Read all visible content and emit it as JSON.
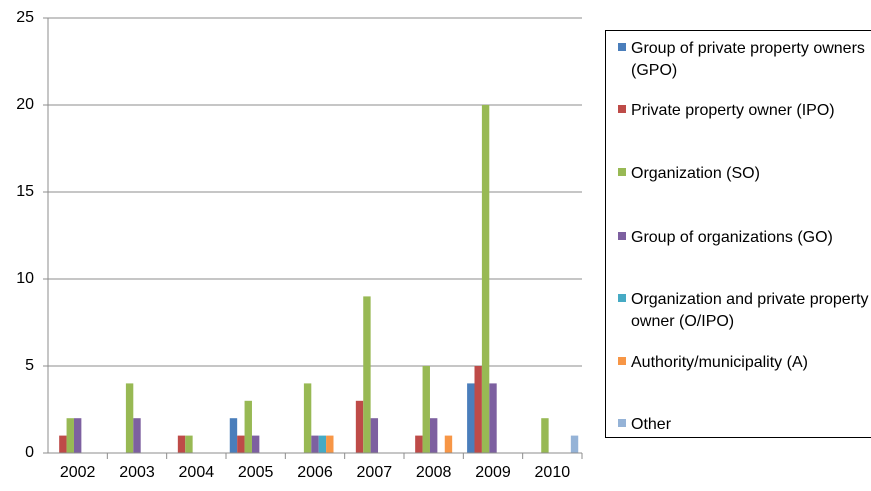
{
  "chart_data": {
    "type": "bar",
    "categories": [
      "2002",
      "2003",
      "2004",
      "2005",
      "2006",
      "2007",
      "2008",
      "2009",
      "2010"
    ],
    "series": [
      {
        "name": "Group of private property owners (GPO)",
        "color": "#4a7ebb",
        "values": [
          0,
          0,
          0,
          2,
          0,
          0,
          0,
          4,
          0
        ]
      },
      {
        "name": "Private property owner (IPO)",
        "color": "#be4b48",
        "values": [
          1,
          0,
          1,
          1,
          0,
          3,
          1,
          5,
          0
        ]
      },
      {
        "name": "Organization (SO)",
        "color": "#98b954",
        "values": [
          2,
          4,
          1,
          3,
          4,
          9,
          5,
          20,
          2
        ]
      },
      {
        "name": "Group of organizations (GO)",
        "color": "#7d60a0",
        "values": [
          2,
          2,
          0,
          1,
          1,
          2,
          2,
          4,
          0
        ]
      },
      {
        "name": "Organization and private property owner (O/IPO)",
        "color": "#46aac4",
        "values": [
          0,
          0,
          0,
          0,
          1,
          0,
          0,
          0,
          0
        ]
      },
      {
        "name": "Authority/municipality (A)",
        "color": "#f79646",
        "values": [
          0,
          0,
          0,
          0,
          1,
          0,
          1,
          0,
          0
        ]
      },
      {
        "name": "Other",
        "color": "#95b3d7",
        "values": [
          0,
          0,
          0,
          0,
          0,
          0,
          0,
          0,
          1
        ]
      }
    ],
    "ylim": [
      0,
      25
    ],
    "yticks": [
      0,
      5,
      10,
      15,
      20,
      25
    ],
    "grid": true,
    "legend": "right"
  }
}
